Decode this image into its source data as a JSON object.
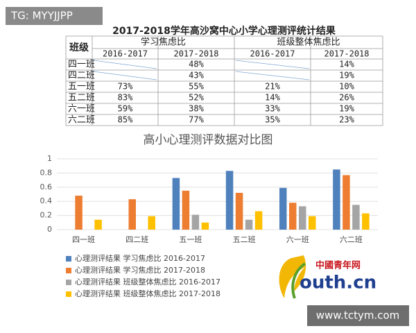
{
  "watermark": "TG: MYYJJPP",
  "footer": "www.tctym.com",
  "table": {
    "title": "2017-2018学年高沙窝中心小学心理测评统计结果",
    "class_header": "班级",
    "groups": [
      "学习焦虑比",
      "班级整体焦虑比"
    ],
    "years": [
      "2016-2017",
      "2017-2018",
      "2016-2017",
      "2017-2018"
    ],
    "rows": [
      [
        "四一班",
        null,
        "48%",
        null,
        "14%"
      ],
      [
        "四二班",
        null,
        "43%",
        null,
        "19%"
      ],
      [
        "五一班",
        "73%",
        "55%",
        "21%",
        "10%"
      ],
      [
        "五二班",
        "83%",
        "52%",
        "14%",
        "26%"
      ],
      [
        "六一班",
        "59%",
        "38%",
        "33%",
        "19%"
      ],
      [
        "六二班",
        "85%",
        "77%",
        "35%",
        "23%"
      ]
    ]
  },
  "logo": {
    "name": "中國青年网",
    "domain": "outh.cn"
  },
  "chart_data": {
    "type": "bar",
    "title": "高小心理测评数据对比图",
    "categories": [
      "四一班",
      "四二班",
      "五一班",
      "五二班",
      "六一班",
      "六二班"
    ],
    "series": [
      {
        "name": "心理测评结果 学习焦虑比 2016-2017",
        "color": "#4f81bd",
        "values": [
          null,
          null,
          0.73,
          0.83,
          0.59,
          0.85
        ]
      },
      {
        "name": "心理测评结果 学习焦虑比 2017-2018",
        "color": "#ed7d31",
        "values": [
          0.48,
          0.43,
          0.55,
          0.52,
          0.38,
          0.77
        ]
      },
      {
        "name": "心理测评结果 班级整体焦虑比 2016-2017",
        "color": "#a5a5a5",
        "values": [
          null,
          null,
          0.21,
          0.14,
          0.33,
          0.35
        ]
      },
      {
        "name": "心理测评结果 班级整体焦虑比 2017-2018",
        "color": "#ffc000",
        "values": [
          0.14,
          0.19,
          0.1,
          0.26,
          0.19,
          0.23
        ]
      }
    ],
    "ylim": [
      0,
      1
    ],
    "yticks": [
      0,
      0.2,
      0.4,
      0.6,
      0.8,
      1
    ],
    "grid": true,
    "legend": "bottom-left"
  }
}
